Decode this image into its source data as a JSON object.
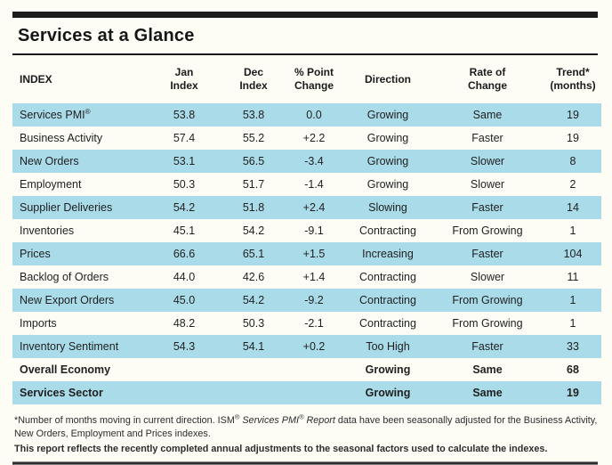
{
  "page": {
    "title": "Services at a Glance"
  },
  "colors": {
    "stripe_blue": "#aadbe9",
    "bar_black": "#1c1c1c"
  },
  "table": {
    "columns": [
      {
        "lines": [
          "INDEX"
        ],
        "align": "left"
      },
      {
        "lines": [
          "Jan",
          "Index"
        ]
      },
      {
        "lines": [
          "Dec",
          "Index"
        ]
      },
      {
        "lines": [
          "% Point",
          "Change"
        ]
      },
      {
        "lines": [
          "Direction"
        ]
      },
      {
        "lines": [
          "Rate of",
          "Change"
        ]
      },
      {
        "lines": [
          "Trend*",
          "(months)"
        ]
      }
    ],
    "rows": [
      {
        "index": "Services PMI®",
        "jan": "53.8",
        "dec": "53.8",
        "change": "0.0",
        "direction": "Growing",
        "rate": "Same",
        "trend": "19",
        "bold": false
      },
      {
        "index": "Business Activity",
        "jan": "57.4",
        "dec": "55.2",
        "change": "+2.2",
        "direction": "Growing",
        "rate": "Faster",
        "trend": "19",
        "bold": false
      },
      {
        "index": "New Orders",
        "jan": "53.1",
        "dec": "56.5",
        "change": "-3.4",
        "direction": "Growing",
        "rate": "Slower",
        "trend": "8",
        "bold": false
      },
      {
        "index": "Employment",
        "jan": "50.3",
        "dec": "51.7",
        "change": "-1.4",
        "direction": "Growing",
        "rate": "Slower",
        "trend": "2",
        "bold": false
      },
      {
        "index": "Supplier Deliveries",
        "jan": "54.2",
        "dec": "51.8",
        "change": "+2.4",
        "direction": "Slowing",
        "rate": "Faster",
        "trend": "14",
        "bold": false
      },
      {
        "index": "Inventories",
        "jan": "45.1",
        "dec": "54.2",
        "change": "-9.1",
        "direction": "Contracting",
        "rate": "From Growing",
        "trend": "1",
        "bold": false
      },
      {
        "index": "Prices",
        "jan": "66.6",
        "dec": "65.1",
        "change": "+1.5",
        "direction": "Increasing",
        "rate": "Faster",
        "trend": "104",
        "bold": false
      },
      {
        "index": "Backlog of Orders",
        "jan": "44.0",
        "dec": "42.6",
        "change": "+1.4",
        "direction": "Contracting",
        "rate": "Slower",
        "trend": "11",
        "bold": false
      },
      {
        "index": "New Export Orders",
        "jan": "45.0",
        "dec": "54.2",
        "change": "-9.2",
        "direction": "Contracting",
        "rate": "From Growing",
        "trend": "1",
        "bold": false
      },
      {
        "index": "Imports",
        "jan": "48.2",
        "dec": "50.3",
        "change": "-2.1",
        "direction": "Contracting",
        "rate": "From Growing",
        "trend": "1",
        "bold": false
      },
      {
        "index": "Inventory Sentiment",
        "jan": "54.3",
        "dec": "54.1",
        "change": "+0.2",
        "direction": "Too High",
        "rate": "Faster",
        "trend": "33",
        "bold": false
      },
      {
        "index": "Overall Economy",
        "jan": "",
        "dec": "",
        "change": "",
        "direction": "Growing",
        "rate": "Same",
        "trend": "68",
        "bold": true
      },
      {
        "index": "Services Sector",
        "jan": "",
        "dec": "",
        "change": "",
        "direction": "Growing",
        "rate": "Same",
        "trend": "19",
        "bold": true
      }
    ]
  },
  "footnotes": {
    "note1_segments": [
      {
        "text": "*Number of months moving in current direction. ISM",
        "style": "normal"
      },
      {
        "text": "®",
        "style": "sup"
      },
      {
        "text": " ",
        "style": "normal"
      },
      {
        "text": "Services PMI",
        "style": "italic"
      },
      {
        "text": "®",
        "style": "italic-sup"
      },
      {
        "text": " Report",
        "style": "italic"
      },
      {
        "text": " data have been seasonally adjusted for the Business Activity, New Orders, Employment and Prices indexes.",
        "style": "normal"
      }
    ],
    "note2": "This report reflects the recently completed annual adjustments to the seasonal factors used to calculate the indexes."
  }
}
